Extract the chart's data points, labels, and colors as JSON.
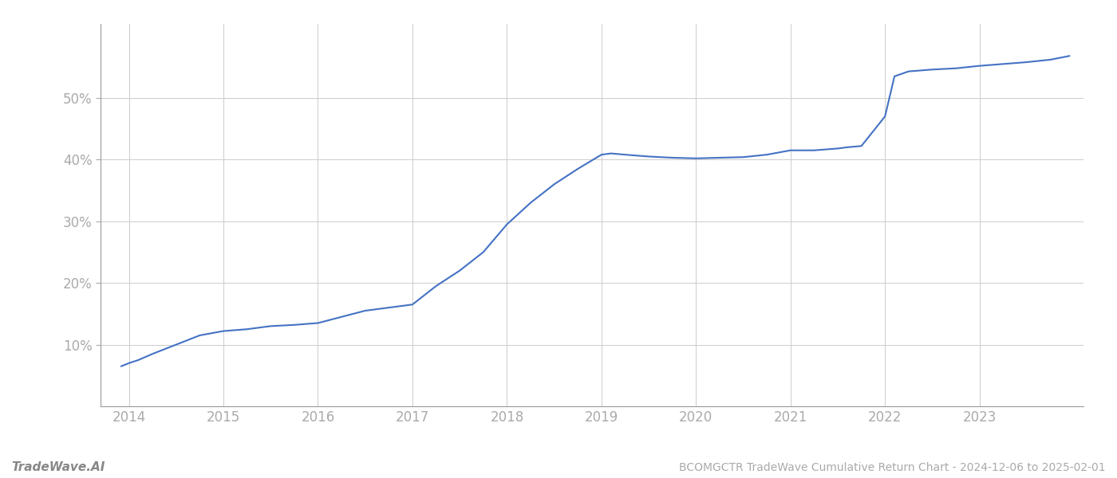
{
  "title": "BCOMGCTR TradeWave Cumulative Return Chart - 2024-12-06 to 2025-02-01",
  "watermark": "TradeWave.AI",
  "line_color": "#4472c4",
  "line_width": 1.5,
  "background_color": "#ffffff",
  "grid_color": "#cccccc",
  "x_years": [
    2013.92,
    2014.0,
    2014.1,
    2014.25,
    2014.5,
    2014.75,
    2015.0,
    2015.25,
    2015.5,
    2015.75,
    2016.0,
    2016.25,
    2016.5,
    2016.75,
    2017.0,
    2017.25,
    2017.5,
    2017.75,
    2018.0,
    2018.25,
    2018.5,
    2018.75,
    2019.0,
    2019.1,
    2019.25,
    2019.5,
    2019.75,
    2020.0,
    2020.25,
    2020.5,
    2020.75,
    2021.0,
    2021.25,
    2021.5,
    2021.6,
    2021.75,
    2022.0,
    2022.1,
    2022.25,
    2022.5,
    2022.75,
    2023.0,
    2023.25,
    2023.5,
    2023.75,
    2023.95
  ],
  "y_values": [
    6.5,
    7.0,
    7.5,
    8.5,
    10.0,
    11.5,
    12.2,
    12.5,
    13.0,
    13.2,
    13.5,
    14.5,
    15.5,
    16.0,
    16.5,
    19.5,
    22.0,
    25.0,
    29.5,
    33.0,
    36.0,
    38.5,
    40.8,
    41.0,
    40.8,
    40.5,
    40.3,
    40.2,
    40.3,
    40.4,
    40.8,
    41.5,
    41.5,
    41.8,
    42.0,
    42.2,
    47.0,
    53.5,
    54.3,
    54.6,
    54.8,
    55.2,
    55.5,
    55.8,
    56.2,
    56.8
  ],
  "yticks": [
    10,
    20,
    30,
    40,
    50
  ],
  "xticks": [
    2014,
    2015,
    2016,
    2017,
    2018,
    2019,
    2020,
    2021,
    2022,
    2023
  ],
  "xlim": [
    2013.7,
    2024.1
  ],
  "ylim": [
    0,
    62
  ],
  "tick_color": "#aaaaaa",
  "tick_fontsize": 12,
  "footer_fontsize": 10,
  "watermark_fontsize": 11,
  "spine_color": "#999999"
}
